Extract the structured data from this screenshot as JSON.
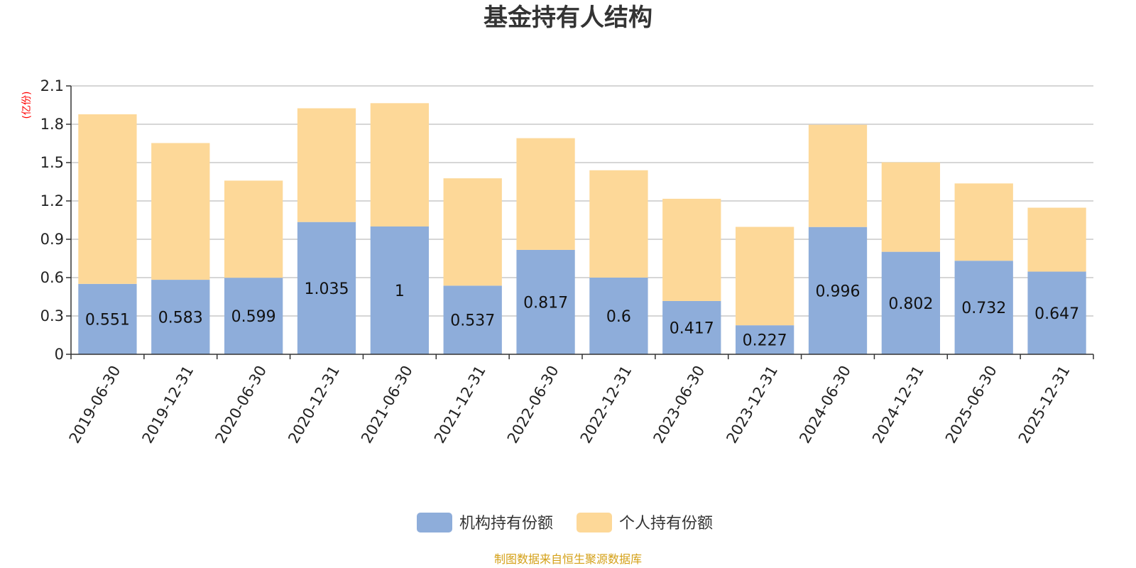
{
  "chart_data": {
    "type": "bar",
    "stacked": true,
    "title": "基金持有人结构",
    "ylabel": "(亿份)",
    "xlabel": "",
    "ylim": [
      0,
      2.1
    ],
    "yticks": [
      0,
      0.3,
      0.6,
      0.9,
      1.2,
      1.5,
      1.8,
      2.1
    ],
    "yticks_labels": [
      "0",
      "0.3",
      "0.6",
      "0.9",
      "1.2",
      "1.5",
      "1.8",
      "2.1"
    ],
    "grid": true,
    "categories": [
      "2019-06-30",
      "2019-12-31",
      "2020-06-30",
      "2020-12-31",
      "2021-06-30",
      "2021-12-31",
      "2022-06-30",
      "2022-12-31",
      "2023-06-30",
      "2023-12-31",
      "2024-06-30",
      "2024-12-31",
      "2025-06-30",
      "2025-12-31"
    ],
    "series": [
      {
        "name": "机构持有份额",
        "color": "#8eadda",
        "values": [
          0.551,
          0.583,
          0.599,
          1.035,
          1,
          0.537,
          0.817,
          0.6,
          0.417,
          0.227,
          0.996,
          0.802,
          0.732,
          0.647
        ],
        "labels": [
          "0.551",
          "0.583",
          "0.599",
          "1.035",
          "1",
          "0.537",
          "0.817",
          "0.6",
          "0.417",
          "0.227",
          "0.996",
          "0.802",
          "0.732",
          "0.647"
        ]
      },
      {
        "name": "个人持有份额",
        "color": "#fdd898",
        "values": [
          1.327,
          1.07,
          0.76,
          0.89,
          0.965,
          0.84,
          0.874,
          0.84,
          0.8,
          0.77,
          0.8,
          0.7,
          0.605,
          0.5
        ]
      }
    ],
    "legend_position": "bottom",
    "source": "制图数据来自恒生聚源数据库"
  }
}
